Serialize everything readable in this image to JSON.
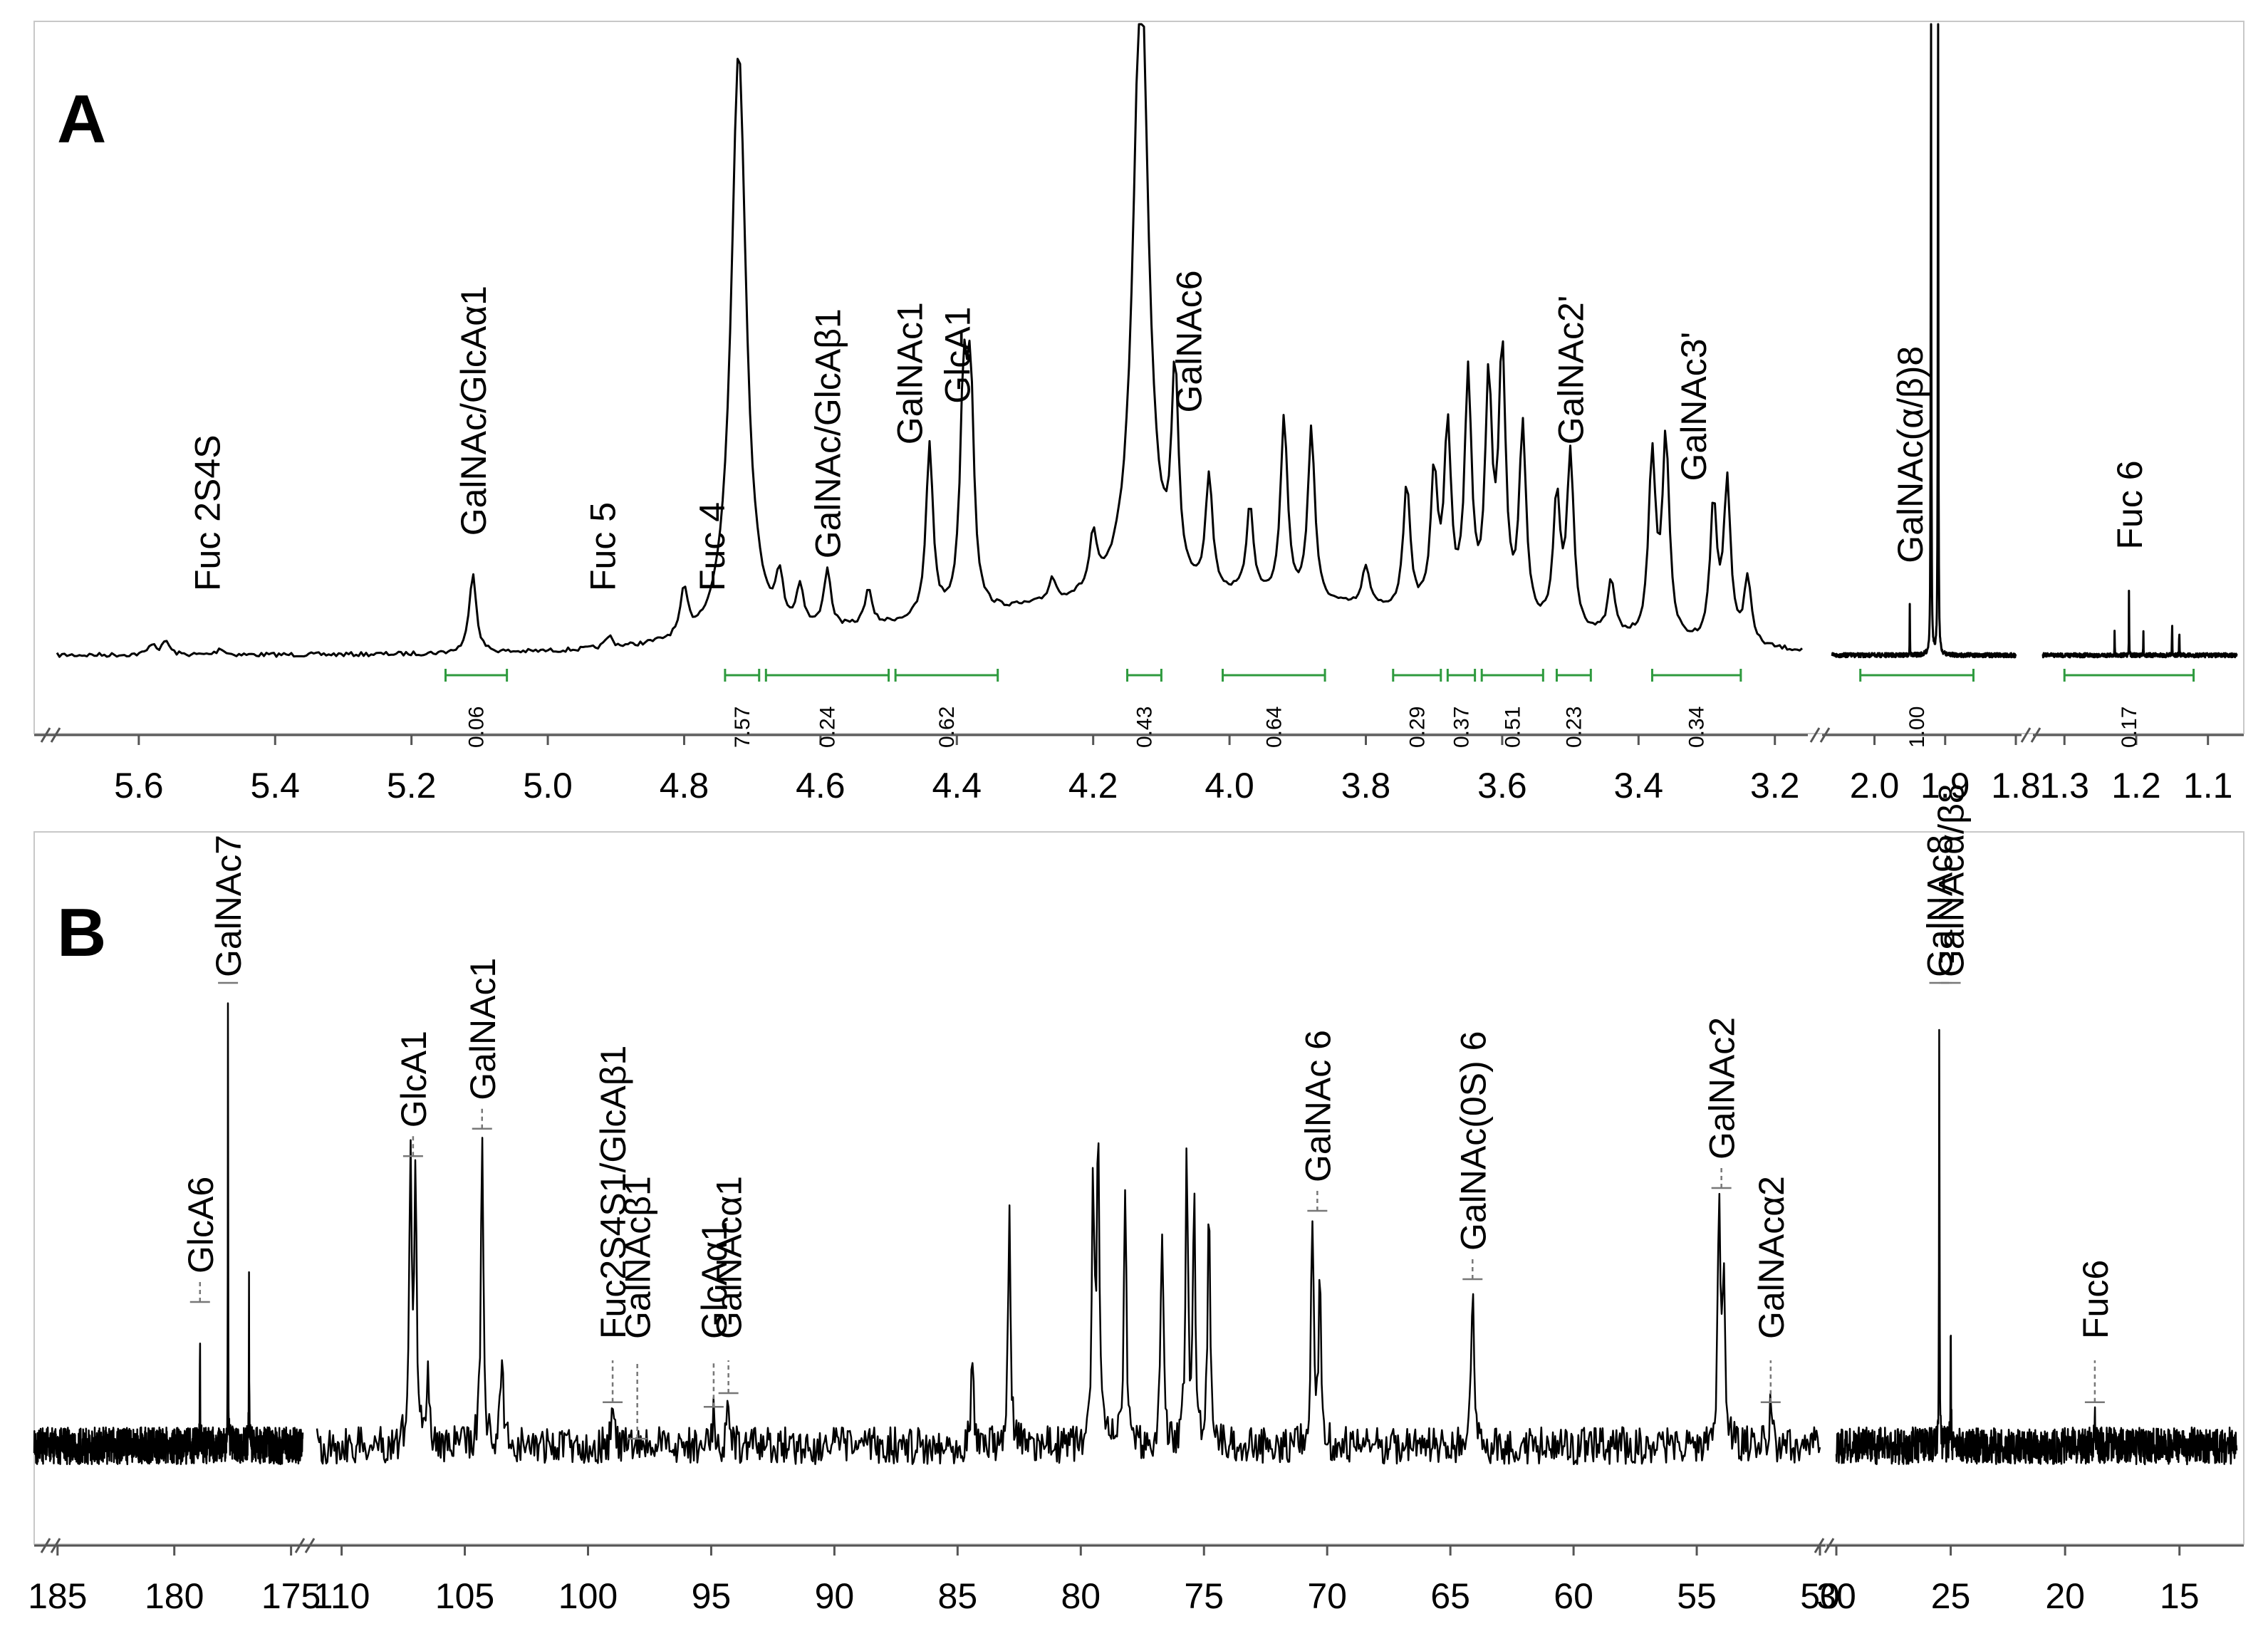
{
  "chart_data": [
    {
      "panel": "A",
      "type": "line",
      "nucleus": "1H NMR",
      "x_reversed": true,
      "segments": [
        {
          "xlim": [
            5.72,
            3.16
          ],
          "ticks": [
            "5.6",
            "5.4",
            "5.2",
            "5.0",
            "4.8",
            "4.6",
            "4.4",
            "4.2",
            "4.0",
            "3.8",
            "3.6",
            "3.4",
            "3.2"
          ]
        },
        {
          "xlim": [
            2.06,
            1.8
          ],
          "ticks": [
            "2.0",
            "1.9",
            "1.8"
          ]
        },
        {
          "xlim": [
            1.33,
            1.06
          ],
          "ticks": [
            "1.3",
            "1.2",
            "1.1"
          ]
        }
      ],
      "peaks": [
        {
          "x": 5.58,
          "h": 0.025
        },
        {
          "x": 5.56,
          "h": 0.03
        },
        {
          "x": 5.48,
          "h": 0.015
        },
        {
          "x": 5.11,
          "h": 0.18
        },
        {
          "x": 4.91,
          "h": 0.025
        },
        {
          "x": 4.8,
          "h": 0.1
        },
        {
          "x": 4.72,
          "h": 1.3
        },
        {
          "x": 4.66,
          "h": 0.1
        },
        {
          "x": 4.63,
          "h": 0.09
        },
        {
          "x": 4.59,
          "h": 0.13
        },
        {
          "x": 4.53,
          "h": 0.08
        },
        {
          "x": 4.44,
          "h": 0.38
        },
        {
          "x": 4.39,
          "h": 0.47
        },
        {
          "x": 4.38,
          "h": 0.47
        },
        {
          "x": 4.26,
          "h": 0.05
        },
        {
          "x": 4.2,
          "h": 0.12
        },
        {
          "x": 4.13,
          "h": 1.4
        },
        {
          "x": 4.08,
          "h": 0.45
        },
        {
          "x": 4.03,
          "h": 0.25
        },
        {
          "x": 3.97,
          "h": 0.2
        },
        {
          "x": 3.92,
          "h": 0.4
        },
        {
          "x": 3.88,
          "h": 0.38
        },
        {
          "x": 3.8,
          "h": 0.09
        },
        {
          "x": 3.74,
          "h": 0.28
        },
        {
          "x": 3.7,
          "h": 0.3
        },
        {
          "x": 3.68,
          "h": 0.4
        },
        {
          "x": 3.65,
          "h": 0.52
        },
        {
          "x": 3.62,
          "h": 0.5
        },
        {
          "x": 3.6,
          "h": 0.58
        },
        {
          "x": 3.57,
          "h": 0.42
        },
        {
          "x": 3.52,
          "h": 0.28
        },
        {
          "x": 3.5,
          "h": 0.38
        },
        {
          "x": 3.44,
          "h": 0.12
        },
        {
          "x": 3.38,
          "h": 0.4
        },
        {
          "x": 3.36,
          "h": 0.44
        },
        {
          "x": 3.29,
          "h": 0.3
        },
        {
          "x": 3.27,
          "h": 0.35
        },
        {
          "x": 3.24,
          "h": 0.15
        },
        {
          "x": 1.95,
          "h": 0.12
        },
        {
          "x": 1.92,
          "h": 1.45
        },
        {
          "x": 1.91,
          "h": 1.45
        },
        {
          "x": 1.23,
          "h": 0.06
        },
        {
          "x": 1.21,
          "h": 0.15
        },
        {
          "x": 1.19,
          "h": 0.05
        },
        {
          "x": 1.15,
          "h": 0.09
        },
        {
          "x": 1.14,
          "h": 0.07
        }
      ],
      "integrals": [
        {
          "x1": 5.15,
          "x2": 5.06,
          "label": "0.06"
        },
        {
          "x1": 4.74,
          "x2": 4.69,
          "label": "7.57"
        },
        {
          "x1": 4.68,
          "x2": 4.5,
          "label": "0.24"
        },
        {
          "x1": 4.49,
          "x2": 4.34,
          "label": "0.62"
        },
        {
          "x1": 4.15,
          "x2": 4.1,
          "label": "0.43"
        },
        {
          "x1": 4.01,
          "x2": 3.86,
          "label": "0.64"
        },
        {
          "x1": 3.76,
          "x2": 3.69,
          "label": "0.29"
        },
        {
          "x1": 3.68,
          "x2": 3.64,
          "label": "0.37"
        },
        {
          "x1": 3.63,
          "x2": 3.54,
          "label": "0.51"
        },
        {
          "x1": 3.52,
          "x2": 3.47,
          "label": "0.23"
        },
        {
          "x1": 3.38,
          "x2": 3.25,
          "label": "0.34"
        },
        {
          "x1": 2.02,
          "x2": 1.86,
          "label": "1.00"
        },
        {
          "x1": 1.3,
          "x2": 1.12,
          "label": "0.17"
        }
      ],
      "annotations": [
        {
          "x": 5.5,
          "text": "Fuc 2S4S"
        },
        {
          "x": 5.11,
          "text": "GalNAc/GlcAα1"
        },
        {
          "x": 4.92,
          "text": "Fuc 5"
        },
        {
          "x": 4.76,
          "text": "Fuc 4"
        },
        {
          "x": 4.59,
          "text": "GalNAc/GlcAβ1"
        },
        {
          "x": 4.47,
          "text": "GalNAc1"
        },
        {
          "x": 4.4,
          "text": "GlcA1"
        },
        {
          "x": 4.06,
          "text": "GalNAc6"
        },
        {
          "x": 3.5,
          "text": "GalNAc2'"
        },
        {
          "x": 3.32,
          "text": "GalNAc3'"
        },
        {
          "x": 1.95,
          "text": "GalNAc(α/β)8"
        },
        {
          "x": 1.21,
          "text": "Fuc 6"
        }
      ]
    },
    {
      "panel": "B",
      "type": "line",
      "nucleus": "13C NMR",
      "x_reversed": true,
      "segments": [
        {
          "xlim": [
            186,
            174.5
          ],
          "ticks": [
            "185",
            "180",
            "175"
          ]
        },
        {
          "xlim": [
            111,
            50
          ],
          "ticks": [
            "110",
            "105",
            "100",
            "95",
            "90",
            "85",
            "80",
            "75",
            "70",
            "65",
            "60",
            "55",
            "50"
          ]
        },
        {
          "xlim": [
            30,
            12.5
          ],
          "ticks": [
            "30",
            "25",
            "20",
            "15"
          ]
        }
      ],
      "peaks": [
        {
          "x": 178.9,
          "h": 0.3
        },
        {
          "x": 177.7,
          "h": 1.0
        },
        {
          "x": 176.8,
          "h": 0.35
        },
        {
          "x": 107.2,
          "h": 0.62
        },
        {
          "x": 107.0,
          "h": 0.55
        },
        {
          "x": 106.5,
          "h": 0.18
        },
        {
          "x": 104.3,
          "h": 0.68
        },
        {
          "x": 103.5,
          "h": 0.22
        },
        {
          "x": 99.0,
          "h": 0.08
        },
        {
          "x": 94.9,
          "h": 0.07
        },
        {
          "x": 94.3,
          "h": 0.1
        },
        {
          "x": 84.4,
          "h": 0.22
        },
        {
          "x": 82.9,
          "h": 0.5
        },
        {
          "x": 79.5,
          "h": 0.55
        },
        {
          "x": 79.3,
          "h": 0.68
        },
        {
          "x": 78.2,
          "h": 0.55
        },
        {
          "x": 76.7,
          "h": 0.48
        },
        {
          "x": 75.7,
          "h": 0.62
        },
        {
          "x": 75.4,
          "h": 0.55
        },
        {
          "x": 74.8,
          "h": 0.55
        },
        {
          "x": 70.6,
          "h": 0.5
        },
        {
          "x": 70.3,
          "h": 0.35
        },
        {
          "x": 64.1,
          "h": 0.35
        },
        {
          "x": 54.1,
          "h": 0.55
        },
        {
          "x": 53.9,
          "h": 0.4
        },
        {
          "x": 52.0,
          "h": 0.08
        },
        {
          "x": 25.5,
          "h": 1.0
        },
        {
          "x": 25.0,
          "h": 0.3
        },
        {
          "x": 18.7,
          "h": 0.08
        }
      ],
      "annotations": [
        {
          "x": 178.9,
          "text": "GlcA6"
        },
        {
          "x": 177.7,
          "text": "GalNAc7"
        },
        {
          "x": 107.1,
          "text": "GlcA1"
        },
        {
          "x": 104.3,
          "text": "GalNAc1"
        },
        {
          "x": 99.0,
          "text": "Fuc2S4S1/GlcAβ1"
        },
        {
          "x": 98.0,
          "text": "GalNAcβ1"
        },
        {
          "x": 94.9,
          "text": "GlcAα1"
        },
        {
          "x": 94.3,
          "text": "GalNAcα1"
        },
        {
          "x": 70.4,
          "text": "GalNAc 6"
        },
        {
          "x": 64.1,
          "text": "GalNAc(0S) 6"
        },
        {
          "x": 54.0,
          "text": "GalNAc2"
        },
        {
          "x": 52.0,
          "text": "GalNAcα2"
        },
        {
          "x": 25.5,
          "text": "GalNAc8"
        },
        {
          "x": 25.0,
          "text": "GalNAcα/β8"
        },
        {
          "x": 18.7,
          "text": "Fuc6"
        }
      ]
    }
  ]
}
